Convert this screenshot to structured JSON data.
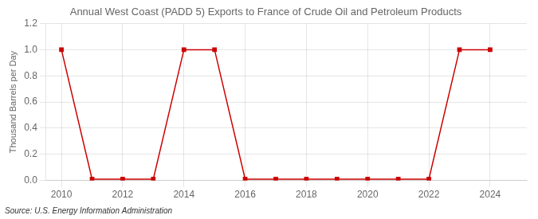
{
  "chart_data": {
    "type": "line",
    "title": "Annual West Coast (PADD 5) Exports to France of Crude Oil and Petroleum Products",
    "ylabel": "Thousand Barrels per Day",
    "annotations": [
      "Source: U.S. Energy Information Administration"
    ],
    "x": [
      2010,
      2011,
      2012,
      2013,
      2014,
      2015,
      2016,
      2017,
      2018,
      2019,
      2020,
      2021,
      2022,
      2023,
      2024
    ],
    "values": [
      1.0,
      0.01,
      0.01,
      0.01,
      1.0,
      1.0,
      0.01,
      0.01,
      0.01,
      0.01,
      0.01,
      0.01,
      0.01,
      1.0,
      1.0
    ],
    "color": "#cc0000",
    "marker": "square",
    "grid": true,
    "xlim": [
      2009.5,
      2025.2
    ],
    "xticks": [
      2010,
      2012,
      2014,
      2016,
      2018,
      2020,
      2022,
      2024
    ],
    "ylim": [
      0.0,
      1.2
    ],
    "yticks": [
      {
        "value": 0.0,
        "label": "0.0"
      },
      0.2,
      0.4,
      0.6,
      0.8,
      {
        "value": 1.0,
        "label": "1.0"
      },
      1.2
    ]
  }
}
